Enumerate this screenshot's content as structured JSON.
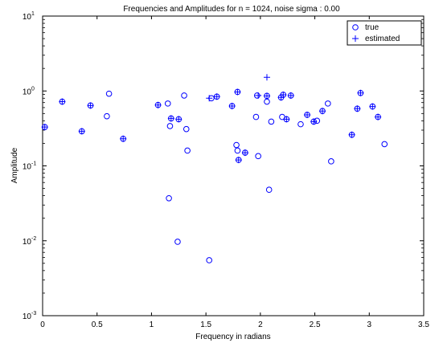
{
  "chart_data": {
    "type": "scatter",
    "title": "Frequencies and Amplitudes for n = 1024, noise sigma :    0.00",
    "xlabel": "Frequency in radians",
    "ylabel": "Amplitude",
    "xlim": [
      0,
      3.5
    ],
    "ylim": [
      0.001,
      10
    ],
    "yscale": "log",
    "x_ticks": [
      0,
      0.5,
      1,
      1.5,
      2,
      2.5,
      3,
      3.5
    ],
    "x_tick_labels": [
      "0",
      "0.5",
      "1",
      "1.5",
      "2",
      "2.5",
      "3",
      "3.5"
    ],
    "y_ticks": [
      0.001,
      0.01,
      0.1,
      1,
      10
    ],
    "y_tick_labels": [
      {
        "base": "10",
        "exp": "-3"
      },
      {
        "base": "10",
        "exp": "-2"
      },
      {
        "base": "10",
        "exp": "-1"
      },
      {
        "base": "10",
        "exp": "0"
      },
      {
        "base": "10",
        "exp": "1"
      }
    ],
    "grid": false,
    "legend_position": "top-right",
    "color": "#0000ff",
    "series": [
      {
        "name": "true",
        "marker": "circle",
        "x": [
          0.02,
          0.18,
          0.36,
          0.44,
          0.59,
          0.61,
          0.74,
          1.06,
          1.15,
          1.16,
          1.17,
          1.18,
          1.24,
          1.25,
          1.3,
          1.32,
          1.33,
          1.53,
          1.55,
          1.6,
          1.74,
          1.78,
          1.79,
          1.79,
          1.8,
          1.86,
          1.96,
          1.97,
          1.98,
          2.06,
          2.06,
          2.08,
          2.1,
          2.19,
          2.2,
          2.21,
          2.24,
          2.28,
          2.37,
          2.43,
          2.49,
          2.52,
          2.57,
          2.62,
          2.65,
          2.84,
          2.89,
          2.92,
          3.03,
          3.08,
          3.14
        ],
        "y": [
          0.33,
          0.72,
          0.29,
          0.64,
          0.46,
          0.92,
          0.23,
          0.65,
          0.68,
          0.037,
          0.34,
          0.43,
          0.0097,
          0.42,
          0.87,
          0.31,
          0.16,
          0.0055,
          0.8,
          0.84,
          0.63,
          0.19,
          0.97,
          0.16,
          0.12,
          0.15,
          0.45,
          0.87,
          0.135,
          0.86,
          0.72,
          0.048,
          0.39,
          0.82,
          0.45,
          0.89,
          0.42,
          0.87,
          0.36,
          0.48,
          0.39,
          0.4,
          0.54,
          0.68,
          0.115,
          0.26,
          0.58,
          0.94,
          0.62,
          0.45,
          0.195
        ]
      },
      {
        "name": "estimated",
        "marker": "plus",
        "x": [
          0.02,
          0.18,
          0.36,
          0.44,
          0.74,
          1.06,
          1.18,
          1.25,
          1.53,
          1.6,
          1.74,
          1.79,
          1.8,
          1.86,
          1.98,
          2.06,
          2.06,
          2.19,
          2.21,
          2.24,
          2.28,
          2.43,
          2.49,
          2.57,
          2.84,
          2.89,
          2.92,
          3.03,
          3.08
        ],
        "y": [
          0.33,
          0.72,
          0.29,
          0.64,
          0.23,
          0.65,
          0.43,
          0.42,
          0.8,
          0.84,
          0.63,
          0.97,
          0.12,
          0.15,
          0.87,
          1.52,
          0.86,
          0.82,
          0.89,
          0.42,
          0.87,
          0.48,
          0.39,
          0.54,
          0.26,
          0.58,
          0.94,
          0.62,
          0.45
        ]
      }
    ]
  }
}
